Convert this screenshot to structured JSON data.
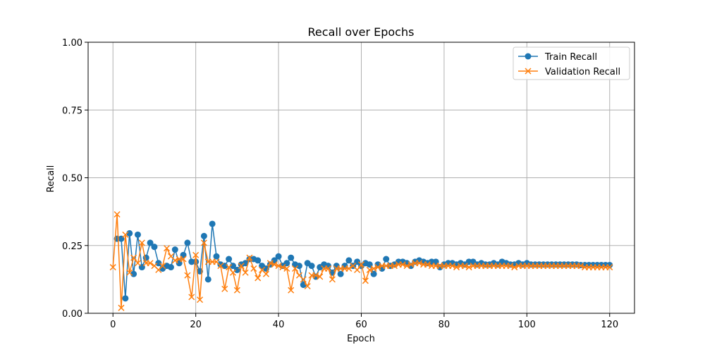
{
  "chart_data": {
    "type": "line",
    "title": "Recall over Epochs",
    "xlabel": "Epoch",
    "ylabel": "Recall",
    "xlim": [
      -6,
      126
    ],
    "ylim": [
      0,
      1
    ],
    "xticks": [
      0,
      20,
      40,
      60,
      80,
      100,
      120
    ],
    "yticks": [
      0.0,
      0.25,
      0.5,
      0.75,
      1.0
    ],
    "ytick_labels": [
      "0.00",
      "0.25",
      "0.50",
      "0.75",
      "1.00"
    ],
    "grid": true,
    "legend_position": "top-right",
    "series": [
      {
        "name": "Train Recall",
        "color": "#1f77b4",
        "marker": "circle",
        "x": [
          1,
          2,
          3,
          4,
          5,
          6,
          7,
          8,
          9,
          10,
          11,
          12,
          13,
          14,
          15,
          16,
          17,
          18,
          19,
          20,
          21,
          22,
          23,
          24,
          25,
          26,
          27,
          28,
          29,
          30,
          31,
          32,
          33,
          34,
          35,
          36,
          37,
          38,
          39,
          40,
          41,
          42,
          43,
          44,
          45,
          46,
          47,
          48,
          49,
          50,
          51,
          52,
          53,
          54,
          55,
          56,
          57,
          58,
          59,
          60,
          61,
          62,
          63,
          64,
          65,
          66,
          67,
          68,
          69,
          70,
          71,
          72,
          73,
          74,
          75,
          76,
          77,
          78,
          79,
          80,
          81,
          82,
          83,
          84,
          85,
          86,
          87,
          88,
          89,
          90,
          91,
          92,
          93,
          94,
          95,
          96,
          97,
          98,
          99,
          100,
          101,
          102,
          103,
          104,
          105,
          106,
          107,
          108,
          109,
          110,
          111,
          112,
          113,
          114,
          115,
          116,
          117,
          118,
          119,
          120
        ],
        "values": [
          0.275,
          0.275,
          0.055,
          0.295,
          0.145,
          0.29,
          0.17,
          0.205,
          0.26,
          0.245,
          0.185,
          0.165,
          0.175,
          0.17,
          0.235,
          0.185,
          0.215,
          0.26,
          0.19,
          0.19,
          0.155,
          0.285,
          0.125,
          0.33,
          0.21,
          0.18,
          0.175,
          0.2,
          0.175,
          0.16,
          0.18,
          0.185,
          0.2,
          0.2,
          0.195,
          0.175,
          0.165,
          0.18,
          0.195,
          0.21,
          0.175,
          0.185,
          0.205,
          0.18,
          0.175,
          0.105,
          0.185,
          0.175,
          0.135,
          0.17,
          0.18,
          0.175,
          0.15,
          0.175,
          0.145,
          0.175,
          0.195,
          0.175,
          0.19,
          0.175,
          0.185,
          0.18,
          0.145,
          0.18,
          0.165,
          0.2,
          0.175,
          0.18,
          0.19,
          0.19,
          0.185,
          0.175,
          0.19,
          0.195,
          0.19,
          0.185,
          0.19,
          0.19,
          0.17,
          0.18,
          0.185,
          0.185,
          0.18,
          0.185,
          0.18,
          0.19,
          0.19,
          0.18,
          0.185,
          0.18,
          0.18,
          0.185,
          0.18,
          0.19,
          0.185,
          0.18,
          0.18,
          0.185,
          0.18,
          0.185,
          0.18,
          0.18,
          0.18,
          0.18,
          0.18,
          0.18,
          0.18,
          0.18,
          0.18,
          0.18,
          0.18,
          0.18,
          0.178,
          0.178,
          0.178,
          0.178,
          0.178,
          0.178,
          0.178,
          0.178
        ]
      },
      {
        "name": "Validation Recall",
        "color": "#ff7f0e",
        "marker": "x",
        "x": [
          0,
          1,
          2,
          3,
          4,
          5,
          6,
          7,
          8,
          9,
          10,
          11,
          12,
          13,
          14,
          15,
          16,
          17,
          18,
          19,
          20,
          21,
          22,
          23,
          24,
          25,
          26,
          27,
          28,
          29,
          30,
          31,
          32,
          33,
          34,
          35,
          36,
          37,
          38,
          39,
          40,
          41,
          42,
          43,
          44,
          45,
          46,
          47,
          48,
          49,
          50,
          51,
          52,
          53,
          54,
          55,
          56,
          57,
          58,
          59,
          60,
          61,
          62,
          63,
          64,
          65,
          66,
          67,
          68,
          69,
          70,
          71,
          72,
          73,
          74,
          75,
          76,
          77,
          78,
          79,
          80,
          81,
          82,
          83,
          84,
          85,
          86,
          87,
          88,
          89,
          90,
          91,
          92,
          93,
          94,
          95,
          96,
          97,
          98,
          99,
          100,
          101,
          102,
          103,
          104,
          105,
          106,
          107,
          108,
          109,
          110,
          111,
          112,
          113,
          114,
          115,
          116,
          117,
          118,
          119,
          120
        ],
        "values": [
          0.17,
          0.365,
          0.02,
          0.29,
          0.15,
          0.205,
          0.185,
          0.26,
          0.185,
          0.185,
          0.175,
          0.16,
          0.175,
          0.24,
          0.21,
          0.195,
          0.2,
          0.2,
          0.14,
          0.06,
          0.215,
          0.05,
          0.26,
          0.19,
          0.19,
          0.19,
          0.175,
          0.09,
          0.17,
          0.15,
          0.085,
          0.175,
          0.15,
          0.205,
          0.165,
          0.13,
          0.16,
          0.145,
          0.185,
          0.18,
          0.175,
          0.17,
          0.165,
          0.085,
          0.165,
          0.14,
          0.125,
          0.1,
          0.14,
          0.14,
          0.135,
          0.165,
          0.165,
          0.125,
          0.165,
          0.165,
          0.165,
          0.165,
          0.175,
          0.16,
          0.18,
          0.12,
          0.16,
          0.165,
          0.17,
          0.175,
          0.175,
          0.175,
          0.175,
          0.18,
          0.18,
          0.175,
          0.18,
          0.185,
          0.185,
          0.18,
          0.18,
          0.175,
          0.175,
          0.175,
          0.175,
          0.175,
          0.175,
          0.17,
          0.175,
          0.175,
          0.17,
          0.175,
          0.175,
          0.175,
          0.175,
          0.175,
          0.175,
          0.175,
          0.175,
          0.175,
          0.175,
          0.17,
          0.175,
          0.175,
          0.175,
          0.175,
          0.175,
          0.175,
          0.175,
          0.175,
          0.175,
          0.175,
          0.175,
          0.175,
          0.175,
          0.175,
          0.175,
          0.175,
          0.17,
          0.17,
          0.17,
          0.17,
          0.17,
          0.17,
          0.17
        ]
      }
    ]
  }
}
